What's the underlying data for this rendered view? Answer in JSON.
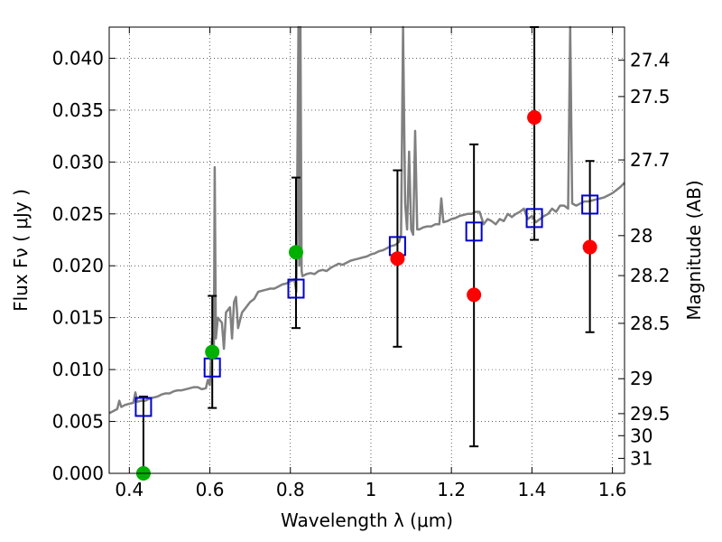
{
  "chart_data": {
    "type": "scatter",
    "xlabel": "Wavelength  λ (μm)",
    "ylabel": "Flux  Fν  ( μJy )",
    "ylabel_right": "Magnitude (AB)",
    "xlim": [
      0.35,
      1.63
    ],
    "ylim": [
      0.0,
      0.043
    ],
    "grid": true,
    "x_ticks": [
      0.4,
      0.6,
      0.8,
      1.0,
      1.2,
      1.4,
      1.6
    ],
    "x_tick_labels": [
      "0.4",
      "0.6",
      "0.8",
      "1",
      "1.2",
      "1.4",
      "1.6"
    ],
    "y_ticks": [
      0.0,
      0.005,
      0.01,
      0.015,
      0.02,
      0.025,
      0.03,
      0.035,
      0.04
    ],
    "y_tick_labels": [
      "0.000",
      "0.005",
      "0.010",
      "0.015",
      "0.020",
      "0.025",
      "0.030",
      "0.035",
      "0.040"
    ],
    "mag_ticks": [
      27.4,
      27.5,
      27.7,
      28,
      28.2,
      28.5,
      29,
      29.5,
      30,
      31
    ],
    "mag_tick_labels": [
      "27.4",
      "27.5",
      "27.7",
      "28",
      "28.2",
      "28.5",
      "29",
      "29.5",
      "30",
      "31"
    ],
    "spectrum": {
      "color": "#808080",
      "points": [
        [
          0.35,
          0.0058
        ],
        [
          0.36,
          0.006
        ],
        [
          0.37,
          0.0062
        ],
        [
          0.375,
          0.007
        ],
        [
          0.38,
          0.0064
        ],
        [
          0.39,
          0.0066
        ],
        [
          0.4,
          0.0067
        ],
        [
          0.41,
          0.0068
        ],
        [
          0.415,
          0.0078
        ],
        [
          0.42,
          0.0069
        ],
        [
          0.43,
          0.007
        ],
        [
          0.44,
          0.007
        ],
        [
          0.45,
          0.0072
        ],
        [
          0.46,
          0.0073
        ],
        [
          0.47,
          0.0074
        ],
        [
          0.48,
          0.0076
        ],
        [
          0.49,
          0.0077
        ],
        [
          0.5,
          0.0077
        ],
        [
          0.51,
          0.0079
        ],
        [
          0.52,
          0.008
        ],
        [
          0.53,
          0.008
        ],
        [
          0.54,
          0.0081
        ],
        [
          0.55,
          0.0082
        ],
        [
          0.56,
          0.0083
        ],
        [
          0.57,
          0.0083
        ],
        [
          0.58,
          0.0081
        ],
        [
          0.59,
          0.0082
        ],
        [
          0.595,
          0.009
        ],
        [
          0.6,
          0.0085
        ],
        [
          0.605,
          0.013
        ],
        [
          0.61,
          0.012
        ],
        [
          0.612,
          0.0295
        ],
        [
          0.615,
          0.013
        ],
        [
          0.62,
          0.015
        ],
        [
          0.63,
          0.0145
        ],
        [
          0.635,
          0.012
        ],
        [
          0.64,
          0.0155
        ],
        [
          0.65,
          0.016
        ],
        [
          0.655,
          0.013
        ],
        [
          0.66,
          0.0165
        ],
        [
          0.665,
          0.017
        ],
        [
          0.67,
          0.014
        ],
        [
          0.68,
          0.0155
        ],
        [
          0.69,
          0.016
        ],
        [
          0.7,
          0.0165
        ],
        [
          0.71,
          0.0168
        ],
        [
          0.72,
          0.0175
        ],
        [
          0.73,
          0.0176
        ],
        [
          0.74,
          0.0177
        ],
        [
          0.75,
          0.0178
        ],
        [
          0.76,
          0.0178
        ],
        [
          0.77,
          0.018
        ],
        [
          0.78,
          0.0182
        ],
        [
          0.79,
          0.0183
        ],
        [
          0.8,
          0.0185
        ],
        [
          0.81,
          0.0187
        ],
        [
          0.815,
          0.0175
        ],
        [
          0.82,
          0.043
        ],
        [
          0.822,
          0.02
        ],
        [
          0.825,
          0.043
        ],
        [
          0.828,
          0.0195
        ],
        [
          0.83,
          0.019
        ],
        [
          0.84,
          0.0192
        ],
        [
          0.85,
          0.0193
        ],
        [
          0.86,
          0.0192
        ],
        [
          0.87,
          0.0195
        ],
        [
          0.88,
          0.0196
        ],
        [
          0.89,
          0.0195
        ],
        [
          0.9,
          0.0198
        ],
        [
          0.91,
          0.02
        ],
        [
          0.92,
          0.0202
        ],
        [
          0.93,
          0.0201
        ],
        [
          0.94,
          0.0203
        ],
        [
          0.95,
          0.0205
        ],
        [
          0.96,
          0.0206
        ],
        [
          0.97,
          0.0207
        ],
        [
          0.98,
          0.0208
        ],
        [
          0.99,
          0.0209
        ],
        [
          1.0,
          0.0211
        ],
        [
          1.01,
          0.0212
        ],
        [
          1.02,
          0.0214
        ],
        [
          1.03,
          0.0215
        ],
        [
          1.04,
          0.0217
        ],
        [
          1.05,
          0.0219
        ],
        [
          1.06,
          0.022
        ],
        [
          1.07,
          0.0223
        ],
        [
          1.075,
          0.023
        ],
        [
          1.08,
          0.043
        ],
        [
          1.085,
          0.026
        ],
        [
          1.09,
          0.0235
        ],
        [
          1.095,
          0.031
        ],
        [
          1.1,
          0.0235
        ],
        [
          1.105,
          0.023
        ],
        [
          1.11,
          0.033
        ],
        [
          1.115,
          0.0235
        ],
        [
          1.12,
          0.0235
        ],
        [
          1.13,
          0.0237
        ],
        [
          1.14,
          0.0238
        ],
        [
          1.15,
          0.0238
        ],
        [
          1.16,
          0.024
        ],
        [
          1.17,
          0.024
        ],
        [
          1.175,
          0.0265
        ],
        [
          1.18,
          0.0242
        ],
        [
          1.19,
          0.0243
        ],
        [
          1.2,
          0.0245
        ],
        [
          1.21,
          0.0246
        ],
        [
          1.22,
          0.0248
        ],
        [
          1.23,
          0.0249
        ],
        [
          1.24,
          0.025
        ],
        [
          1.25,
          0.025
        ],
        [
          1.26,
          0.0252
        ],
        [
          1.27,
          0.0252
        ],
        [
          1.28,
          0.024
        ],
        [
          1.29,
          0.0245
        ],
        [
          1.3,
          0.0243
        ],
        [
          1.31,
          0.024
        ],
        [
          1.32,
          0.0245
        ],
        [
          1.33,
          0.0243
        ],
        [
          1.34,
          0.025
        ],
        [
          1.35,
          0.0247
        ],
        [
          1.36,
          0.025
        ],
        [
          1.37,
          0.0252
        ],
        [
          1.38,
          0.0255
        ],
        [
          1.39,
          0.0245
        ],
        [
          1.4,
          0.0248
        ],
        [
          1.41,
          0.0242
        ],
        [
          1.42,
          0.0245
        ],
        [
          1.43,
          0.0248
        ],
        [
          1.44,
          0.025
        ],
        [
          1.45,
          0.0255
        ],
        [
          1.46,
          0.0252
        ],
        [
          1.47,
          0.0258
        ],
        [
          1.48,
          0.0258
        ],
        [
          1.49,
          0.0255
        ],
        [
          1.495,
          0.043
        ],
        [
          1.5,
          0.026
        ],
        [
          1.51,
          0.0258
        ],
        [
          1.52,
          0.026
        ],
        [
          1.53,
          0.0262
        ],
        [
          1.54,
          0.0262
        ],
        [
          1.55,
          0.0263
        ],
        [
          1.56,
          0.0264
        ],
        [
          1.57,
          0.0265
        ],
        [
          1.58,
          0.0266
        ],
        [
          1.59,
          0.0268
        ],
        [
          1.6,
          0.027
        ],
        [
          1.61,
          0.0273
        ],
        [
          1.62,
          0.0276
        ],
        [
          1.63,
          0.028
        ]
      ]
    },
    "model_flux": {
      "marker": "open-square",
      "color": "#0000cc",
      "points": [
        [
          0.435,
          0.0064
        ],
        [
          0.606,
          0.0102
        ],
        [
          0.814,
          0.0178
        ],
        [
          1.066,
          0.0219
        ],
        [
          1.256,
          0.0233
        ],
        [
          1.406,
          0.0246
        ],
        [
          1.544,
          0.0259
        ]
      ]
    },
    "detections": {
      "marker": "filled-circle",
      "color": "#00b000",
      "points": [
        [
          0.435,
          0.0
        ],
        [
          0.606,
          0.0117
        ],
        [
          0.814,
          0.0213
        ]
      ]
    },
    "upper_limits": {
      "marker": "filled-circle",
      "color": "#ff0000",
      "points": [
        [
          1.066,
          0.0207
        ],
        [
          1.256,
          0.0172
        ],
        [
          1.406,
          0.0343
        ],
        [
          1.544,
          0.0218
        ]
      ]
    },
    "error_bars": [
      {
        "x": 0.435,
        "low": 0.0,
        "high": 0.0074
      },
      {
        "x": 0.606,
        "low": 0.0063,
        "high": 0.0171
      },
      {
        "x": 0.814,
        "low": 0.014,
        "high": 0.0285
      },
      {
        "x": 1.066,
        "low": 0.0122,
        "high": 0.0292
      },
      {
        "x": 1.256,
        "low": 0.0026,
        "high": 0.0317
      },
      {
        "x": 1.406,
        "low": 0.0225,
        "high": 0.043
      },
      {
        "x": 1.544,
        "low": 0.0136,
        "high": 0.0301
      }
    ]
  }
}
